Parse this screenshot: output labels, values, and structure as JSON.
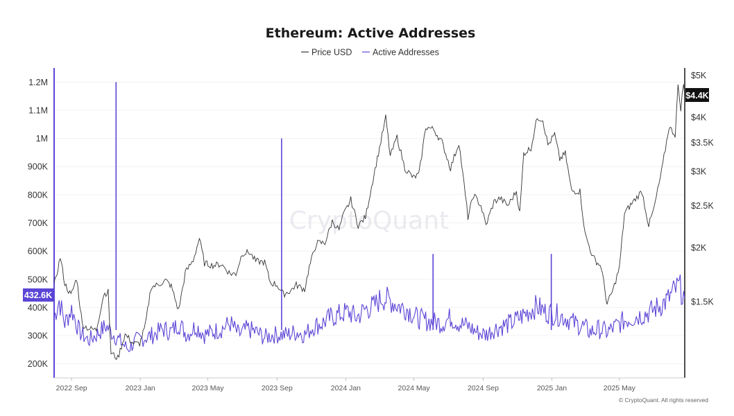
{
  "title": "Ethereum: Active Addresses",
  "legend": [
    {
      "name": "Price USD",
      "color": "#333333"
    },
    {
      "name": "Active Addresses",
      "color": "#5b45d6"
    }
  ],
  "watermark": "CryptoQuant",
  "copyright": "© CryptoQuant. All rights reserved",
  "badges": {
    "left": "432.6K",
    "right": "$4.4K"
  },
  "chart_data": {
    "type": "line",
    "title": "Ethereum: Active Addresses",
    "grid": true,
    "legend_position": "top-center",
    "x_ticks": [
      "2022 Sep",
      "2023 Jan",
      "2023 May",
      "2023 Sep",
      "2024 Jan",
      "2024 May",
      "2024 Sep",
      "2025 Jan",
      "2025 May"
    ],
    "x_range": [
      "2022-08-01",
      "2025-08-25"
    ],
    "left_axis": {
      "ticks": [
        "200K",
        "300K",
        "400K",
        "500K",
        "600K",
        "700K",
        "800K",
        "900K",
        "1M",
        "1.1M",
        "1.2M"
      ],
      "range": [
        150000,
        1250000
      ]
    },
    "right_axis": {
      "scale": "log",
      "ticks": [
        "$1.5K",
        "$2K",
        "$2.5K",
        "$3K",
        "$3.5K",
        "$4K",
        "$5K"
      ],
      "tick_values": [
        1500,
        2000,
        2500,
        3000,
        3500,
        4000,
        5000
      ],
      "range": [
        1000,
        5200
      ]
    },
    "series": [
      {
        "name": "Price USD",
        "axis": "right",
        "points": [
          [
            "2022-08-01",
            1630
          ],
          [
            "2022-08-12",
            1900
          ],
          [
            "2022-08-20",
            1650
          ],
          [
            "2022-08-31",
            1550
          ],
          [
            "2022-09-10",
            1700
          ],
          [
            "2022-09-20",
            1330
          ],
          [
            "2022-10-01",
            1300
          ],
          [
            "2022-10-15",
            1290
          ],
          [
            "2022-10-28",
            1560
          ],
          [
            "2022-11-05",
            1580
          ],
          [
            "2022-11-10",
            1140
          ],
          [
            "2022-11-22",
            1110
          ],
          [
            "2022-12-05",
            1260
          ],
          [
            "2022-12-20",
            1200
          ],
          [
            "2022-12-31",
            1200
          ],
          [
            "2023-01-10",
            1320
          ],
          [
            "2023-01-20",
            1620
          ],
          [
            "2023-02-01",
            1640
          ],
          [
            "2023-02-15",
            1680
          ],
          [
            "2023-02-25",
            1630
          ],
          [
            "2023-03-10",
            1430
          ],
          [
            "2023-03-22",
            1750
          ],
          [
            "2023-04-05",
            1870
          ],
          [
            "2023-04-16",
            2100
          ],
          [
            "2023-04-25",
            1840
          ],
          [
            "2023-05-10",
            1820
          ],
          [
            "2023-05-25",
            1830
          ],
          [
            "2023-06-10",
            1740
          ],
          [
            "2023-06-20",
            1740
          ],
          [
            "2023-07-01",
            1940
          ],
          [
            "2023-07-14",
            1950
          ],
          [
            "2023-07-25",
            1860
          ],
          [
            "2023-08-10",
            1850
          ],
          [
            "2023-08-20",
            1660
          ],
          [
            "2023-09-01",
            1640
          ],
          [
            "2023-09-12",
            1560
          ],
          [
            "2023-09-25",
            1590
          ],
          [
            "2023-10-05",
            1640
          ],
          [
            "2023-10-20",
            1600
          ],
          [
            "2023-10-28",
            1800
          ],
          [
            "2023-11-10",
            2050
          ],
          [
            "2023-11-25",
            2050
          ],
          [
            "2023-12-08",
            2300
          ],
          [
            "2023-12-20",
            2200
          ],
          [
            "2023-12-28",
            2380
          ],
          [
            "2024-01-10",
            2580
          ],
          [
            "2024-01-23",
            2250
          ],
          [
            "2024-02-05",
            2350
          ],
          [
            "2024-02-20",
            2950
          ],
          [
            "2024-03-01",
            3400
          ],
          [
            "2024-03-12",
            4000
          ],
          [
            "2024-03-20",
            3250
          ],
          [
            "2024-04-01",
            3600
          ],
          [
            "2024-04-15",
            3050
          ],
          [
            "2024-04-30",
            2900
          ],
          [
            "2024-05-10",
            2950
          ],
          [
            "2024-05-22",
            3800
          ],
          [
            "2024-06-05",
            3750
          ],
          [
            "2024-06-20",
            3500
          ],
          [
            "2024-07-05",
            3050
          ],
          [
            "2024-07-20",
            3500
          ],
          [
            "2024-08-05",
            2350
          ],
          [
            "2024-08-15",
            2650
          ],
          [
            "2024-08-28",
            2500
          ],
          [
            "2024-09-06",
            2250
          ],
          [
            "2024-09-20",
            2550
          ],
          [
            "2024-10-01",
            2600
          ],
          [
            "2024-10-15",
            2500
          ],
          [
            "2024-10-30",
            2700
          ],
          [
            "2024-11-05",
            2400
          ],
          [
            "2024-11-12",
            3300
          ],
          [
            "2024-11-25",
            3400
          ],
          [
            "2024-12-06",
            4000
          ],
          [
            "2024-12-16",
            3950
          ],
          [
            "2024-12-25",
            3450
          ],
          [
            "2025-01-06",
            3650
          ],
          [
            "2025-01-15",
            3200
          ],
          [
            "2025-01-25",
            3300
          ],
          [
            "2025-02-05",
            2700
          ],
          [
            "2025-02-20",
            2700
          ],
          [
            "2025-03-01",
            2150
          ],
          [
            "2025-03-15",
            1900
          ],
          [
            "2025-03-30",
            1800
          ],
          [
            "2025-04-09",
            1480
          ],
          [
            "2025-04-20",
            1600
          ],
          [
            "2025-05-01",
            1800
          ],
          [
            "2025-05-10",
            2400
          ],
          [
            "2025-05-25",
            2550
          ],
          [
            "2025-06-10",
            2700
          ],
          [
            "2025-06-22",
            2250
          ],
          [
            "2025-07-01",
            2450
          ],
          [
            "2025-07-15",
            3000
          ],
          [
            "2025-07-28",
            3800
          ],
          [
            "2025-08-08",
            3650
          ],
          [
            "2025-08-13",
            4700
          ],
          [
            "2025-08-18",
            4200
          ],
          [
            "2025-08-23",
            4800
          ],
          [
            "2025-08-25",
            4400
          ]
        ]
      },
      {
        "name": "Active Addresses",
        "axis": "left",
        "spikes": [
          [
            "2022-11-19",
            1200000
          ],
          [
            "2023-09-09",
            1000000
          ],
          [
            "2024-06-04",
            590000
          ],
          [
            "2024-12-31",
            590000
          ]
        ],
        "points": [
          [
            "2022-08-01",
            360000
          ],
          [
            "2022-08-10",
            420000
          ],
          [
            "2022-08-20",
            340000
          ],
          [
            "2022-09-01",
            390000
          ],
          [
            "2022-09-15",
            310000
          ],
          [
            "2022-10-01",
            280000
          ],
          [
            "2022-10-15",
            300000
          ],
          [
            "2022-11-01",
            330000
          ],
          [
            "2022-11-15",
            300000
          ],
          [
            "2022-11-30",
            270000
          ],
          [
            "2022-12-10",
            250000
          ],
          [
            "2022-12-25",
            280000
          ],
          [
            "2023-01-10",
            290000
          ],
          [
            "2023-01-25",
            300000
          ],
          [
            "2023-02-10",
            320000
          ],
          [
            "2023-02-25",
            310000
          ],
          [
            "2023-03-10",
            340000
          ],
          [
            "2023-03-25",
            300000
          ],
          [
            "2023-04-10",
            330000
          ],
          [
            "2023-04-25",
            300000
          ],
          [
            "2023-05-10",
            310000
          ],
          [
            "2023-05-25",
            320000
          ],
          [
            "2023-06-10",
            340000
          ],
          [
            "2023-06-25",
            300000
          ],
          [
            "2023-07-10",
            320000
          ],
          [
            "2023-07-25",
            310000
          ],
          [
            "2023-08-10",
            290000
          ],
          [
            "2023-08-25",
            300000
          ],
          [
            "2023-09-20",
            300000
          ],
          [
            "2023-10-05",
            310000
          ],
          [
            "2023-10-20",
            300000
          ],
          [
            "2023-11-05",
            330000
          ],
          [
            "2023-11-20",
            340000
          ],
          [
            "2023-12-05",
            360000
          ],
          [
            "2023-12-20",
            370000
          ],
          [
            "2024-01-05",
            380000
          ],
          [
            "2024-01-20",
            360000
          ],
          [
            "2024-02-05",
            390000
          ],
          [
            "2024-02-20",
            400000
          ],
          [
            "2024-03-05",
            430000
          ],
          [
            "2024-03-20",
            420000
          ],
          [
            "2024-04-05",
            400000
          ],
          [
            "2024-04-20",
            390000
          ],
          [
            "2024-05-05",
            360000
          ],
          [
            "2024-05-20",
            350000
          ],
          [
            "2024-06-20",
            340000
          ],
          [
            "2024-07-05",
            360000
          ],
          [
            "2024-07-20",
            340000
          ],
          [
            "2024-08-05",
            330000
          ],
          [
            "2024-08-20",
            310000
          ],
          [
            "2024-09-05",
            300000
          ],
          [
            "2024-09-20",
            320000
          ],
          [
            "2024-10-05",
            330000
          ],
          [
            "2024-10-20",
            340000
          ],
          [
            "2024-11-05",
            360000
          ],
          [
            "2024-11-20",
            380000
          ],
          [
            "2024-12-05",
            400000
          ],
          [
            "2024-12-20",
            380000
          ],
          [
            "2025-01-10",
            370000
          ],
          [
            "2025-01-25",
            360000
          ],
          [
            "2025-02-10",
            340000
          ],
          [
            "2025-02-25",
            330000
          ],
          [
            "2025-03-10",
            310000
          ],
          [
            "2025-03-25",
            320000
          ],
          [
            "2025-04-10",
            310000
          ],
          [
            "2025-04-25",
            330000
          ],
          [
            "2025-05-10",
            350000
          ],
          [
            "2025-05-25",
            360000
          ],
          [
            "2025-06-10",
            370000
          ],
          [
            "2025-06-25",
            380000
          ],
          [
            "2025-07-10",
            400000
          ],
          [
            "2025-07-25",
            420000
          ],
          [
            "2025-08-05",
            450000
          ],
          [
            "2025-08-15",
            470000
          ],
          [
            "2025-08-25",
            432600
          ]
        ]
      }
    ]
  }
}
